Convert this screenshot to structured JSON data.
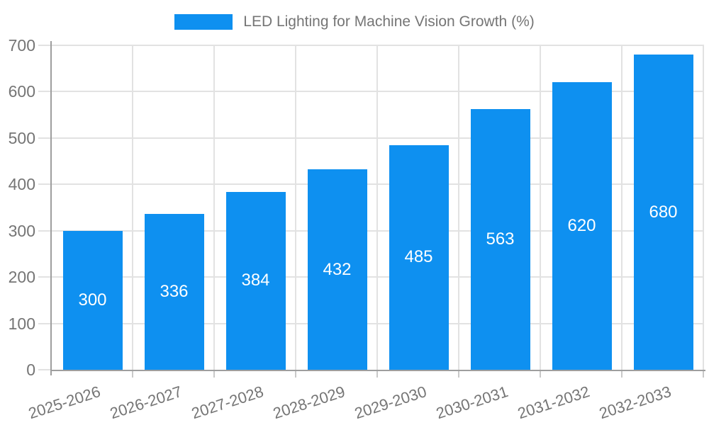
{
  "chart_data": {
    "type": "bar",
    "title": "LED Lighting for Machine Vision Growth (%)",
    "categories": [
      "2025-2026",
      "2026-2027",
      "2027-2028",
      "2028-2029",
      "2029-2030",
      "2030-2031",
      "2031-2032",
      "2032-2033"
    ],
    "values": [
      300,
      336,
      384,
      432,
      485,
      563,
      620,
      680
    ],
    "xlabel": "",
    "ylabel": "",
    "ylim": [
      0,
      700
    ],
    "ytick_step": 100,
    "yticks": [
      0,
      100,
      200,
      300,
      400,
      500,
      600,
      700
    ],
    "grid": true,
    "legend_position": "top",
    "bar_labels_visible": true
  },
  "colors": {
    "bar": "#0E90F0",
    "bar_label": "#FFFFFF",
    "gridline": "#E2E2E2",
    "axis_line": "#9E9E9E",
    "tick_label": "#757575",
    "legend_text": "#757575",
    "background": "#FFFFFF"
  },
  "legend": {
    "series_label": "LED Lighting for Machine Vision Growth (%)"
  }
}
